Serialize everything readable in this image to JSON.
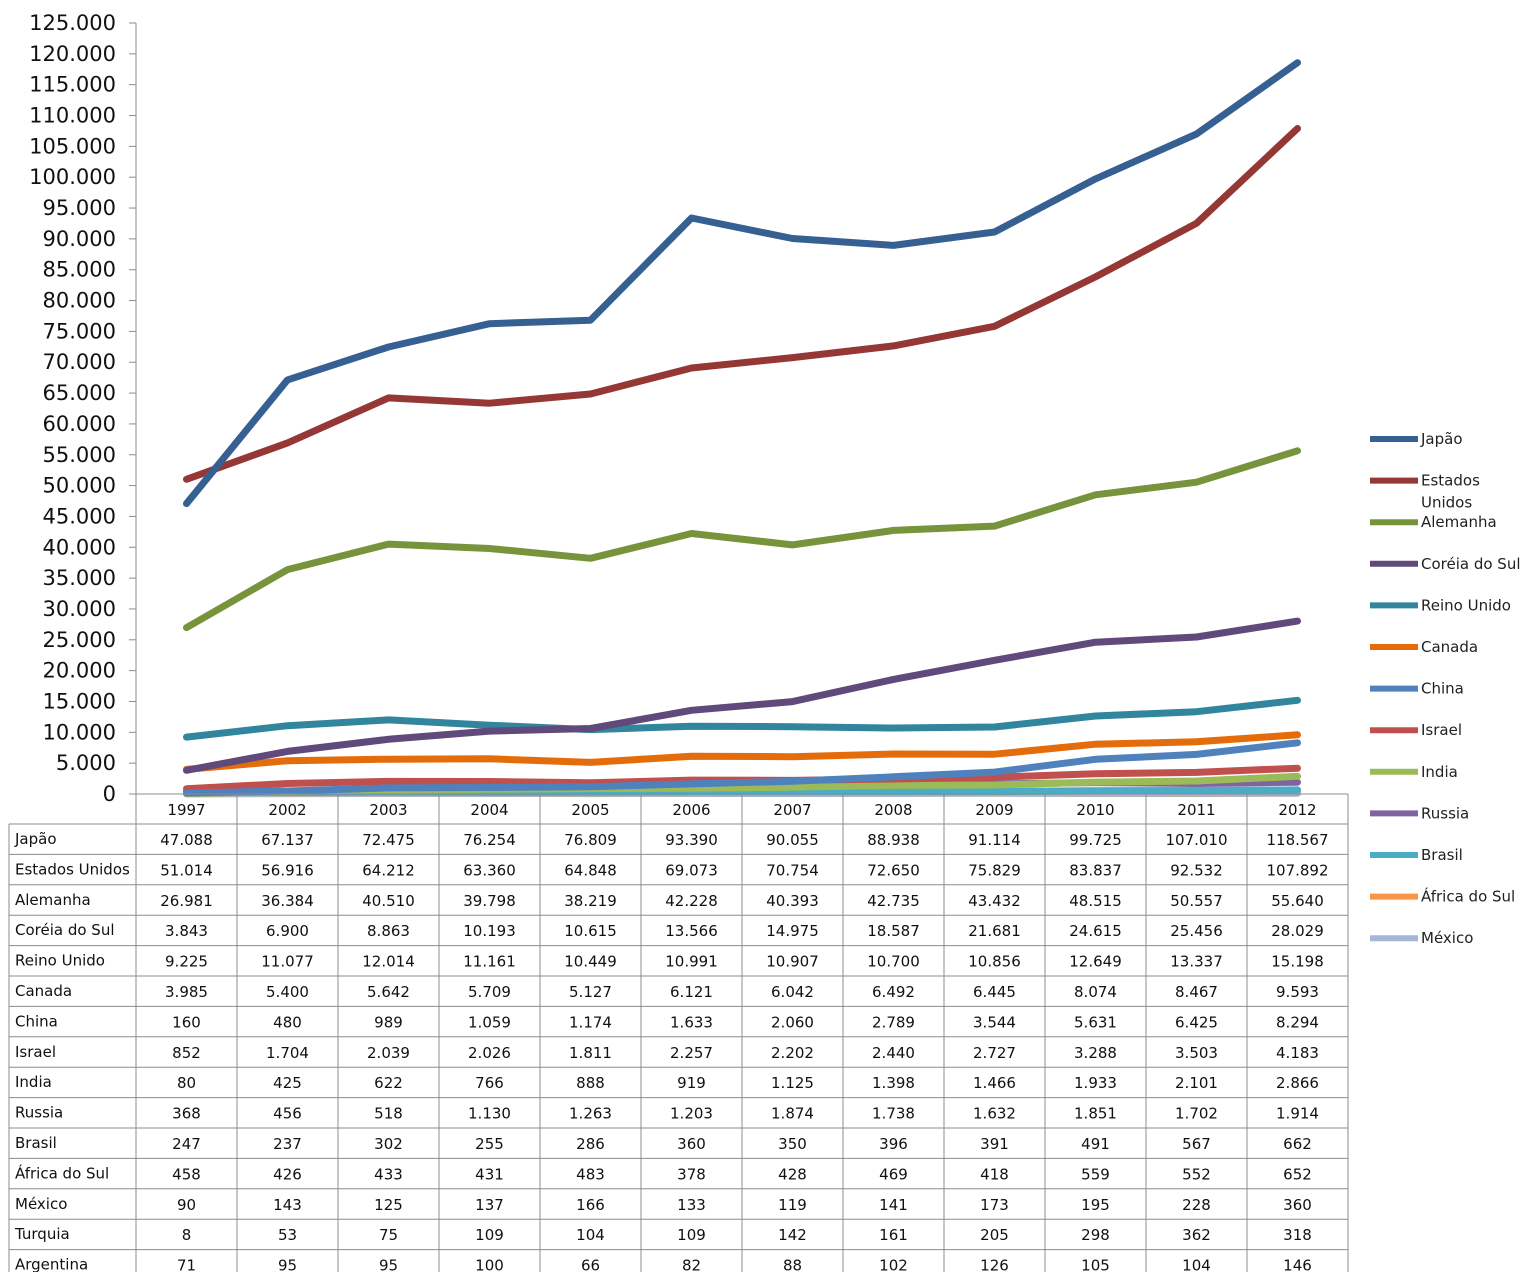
{
  "chart_data": {
    "type": "line",
    "title": "",
    "xlabel": "",
    "ylabel": "",
    "ylim": [
      0,
      125000
    ],
    "y_ticks": [
      "0",
      "5.000",
      "10.000",
      "15.000",
      "20.000",
      "25.000",
      "30.000",
      "35.000",
      "40.000",
      "45.000",
      "50.000",
      "55.000",
      "60.000",
      "65.000",
      "70.000",
      "75.000",
      "80.000",
      "85.000",
      "90.000",
      "95.000",
      "100.000",
      "105.000",
      "110.000",
      "115.000",
      "120.000",
      "125.000"
    ],
    "categories": [
      "1997",
      "2002",
      "2003",
      "2004",
      "2005",
      "2006",
      "2007",
      "2008",
      "2009",
      "2010",
      "2011",
      "2012"
    ],
    "legend_position": "right",
    "series": [
      {
        "name": "Japão",
        "color": "#376092",
        "plotted": true,
        "values": [
          47088,
          67137,
          72475,
          76254,
          76809,
          93390,
          90055,
          88938,
          91114,
          99725,
          107010,
          118567
        ],
        "labels": [
          "47.088",
          "67.137",
          "72.475",
          "76.254",
          "76.809",
          "93.390",
          "90.055",
          "88.938",
          "91.114",
          "99.725",
          "107.010",
          "118.567"
        ]
      },
      {
        "name": "Estados Unidos",
        "legend_lines": [
          "Estados",
          "Unidos"
        ],
        "color": "#953735",
        "plotted": true,
        "values": [
          51014,
          56916,
          64212,
          63360,
          64848,
          69073,
          70754,
          72650,
          75829,
          83837,
          92532,
          107892
        ],
        "labels": [
          "51.014",
          "56.916",
          "64.212",
          "63.360",
          "64.848",
          "69.073",
          "70.754",
          "72.650",
          "75.829",
          "83.837",
          "92.532",
          "107.892"
        ]
      },
      {
        "name": "Alemanha",
        "color": "#77933C",
        "plotted": true,
        "values": [
          26981,
          36384,
          40510,
          39798,
          38219,
          42228,
          40393,
          42735,
          43432,
          48515,
          50557,
          55640
        ],
        "labels": [
          "26.981",
          "36.384",
          "40.510",
          "39.798",
          "38.219",
          "42.228",
          "40.393",
          "42.735",
          "43.432",
          "48.515",
          "50.557",
          "55.640"
        ]
      },
      {
        "name": "Coréia do Sul",
        "color": "#604A7B",
        "plotted": true,
        "values": [
          3843,
          6900,
          8863,
          10193,
          10615,
          13566,
          14975,
          18587,
          21681,
          24615,
          25456,
          28029
        ],
        "labels": [
          "3.843",
          "6.900",
          "8.863",
          "10.193",
          "10.615",
          "13.566",
          "14.975",
          "18.587",
          "21.681",
          "24.615",
          "25.456",
          "28.029"
        ]
      },
      {
        "name": "Reino Unido",
        "color": "#31859C",
        "plotted": true,
        "values": [
          9225,
          11077,
          12014,
          11161,
          10449,
          10991,
          10907,
          10700,
          10856,
          12649,
          13337,
          15198
        ],
        "labels": [
          "9.225",
          "11.077",
          "12.014",
          "11.161",
          "10.449",
          "10.991",
          "10.907",
          "10.700",
          "10.856",
          "12.649",
          "13.337",
          "15.198"
        ]
      },
      {
        "name": "Canada",
        "color": "#E46C0A",
        "plotted": true,
        "values": [
          3985,
          5400,
          5642,
          5709,
          5127,
          6121,
          6042,
          6492,
          6445,
          8074,
          8467,
          9593
        ],
        "labels": [
          "3.985",
          "5.400",
          "5.642",
          "5.709",
          "5.127",
          "6.121",
          "6.042",
          "6.492",
          "6.445",
          "8.074",
          "8.467",
          "9.593"
        ]
      },
      {
        "name": "China",
        "color": "#4F81BD",
        "plotted": true,
        "values": [
          160,
          480,
          989,
          1059,
          1174,
          1633,
          2060,
          2789,
          3544,
          5631,
          6425,
          8294
        ],
        "labels": [
          "160",
          "480",
          "989",
          "1.059",
          "1.174",
          "1.633",
          "2.060",
          "2.789",
          "3.544",
          "5.631",
          "6.425",
          "8.294"
        ]
      },
      {
        "name": "Israel",
        "color": "#C0504D",
        "plotted": true,
        "values": [
          852,
          1704,
          2039,
          2026,
          1811,
          2257,
          2202,
          2440,
          2727,
          3288,
          3503,
          4183
        ],
        "labels": [
          "852",
          "1.704",
          "2.039",
          "2.026",
          "1.811",
          "2.257",
          "2.202",
          "2.440",
          "2.727",
          "3.288",
          "3.503",
          "4.183"
        ]
      },
      {
        "name": "India",
        "color": "#9BBB59",
        "plotted": true,
        "values": [
          80,
          425,
          622,
          766,
          888,
          919,
          1125,
          1398,
          1466,
          1933,
          2101,
          2866
        ],
        "labels": [
          "80",
          "425",
          "622",
          "766",
          "888",
          "919",
          "1.125",
          "1.398",
          "1.466",
          "1.933",
          "2.101",
          "2.866"
        ]
      },
      {
        "name": "Russia",
        "color": "#8064A2",
        "plotted": true,
        "values": [
          368,
          456,
          518,
          1130,
          1263,
          1203,
          1874,
          1738,
          1632,
          1851,
          1702,
          1914
        ],
        "labels": [
          "368",
          "456",
          "518",
          "1.130",
          "1.263",
          "1.203",
          "1.874",
          "1.738",
          "1.632",
          "1.851",
          "1.702",
          "1.914"
        ]
      },
      {
        "name": "Brasil",
        "color": "#4BACC6",
        "plotted": true,
        "values": [
          247,
          237,
          302,
          255,
          286,
          360,
          350,
          396,
          391,
          491,
          567,
          662
        ],
        "labels": [
          "247",
          "237",
          "302",
          "255",
          "286",
          "360",
          "350",
          "396",
          "391",
          "491",
          "567",
          "662"
        ]
      },
      {
        "name": "África do Sul",
        "color": "#F79646",
        "plotted": true,
        "values": [
          458,
          426,
          433,
          431,
          483,
          378,
          428,
          469,
          418,
          559,
          552,
          652
        ],
        "labels": [
          "458",
          "426",
          "433",
          "431",
          "483",
          "378",
          "428",
          "469",
          "418",
          "559",
          "552",
          "652"
        ]
      },
      {
        "name": "México",
        "color": "#A5B6D9",
        "plotted": true,
        "values": [
          90,
          143,
          125,
          137,
          166,
          133,
          119,
          141,
          173,
          195,
          228,
          360
        ],
        "labels": [
          "90",
          "143",
          "125",
          "137",
          "166",
          "133",
          "119",
          "141",
          "173",
          "195",
          "228",
          "360"
        ]
      },
      {
        "name": "Turquia",
        "color": "#CFC07A",
        "plotted": true,
        "values": [
          8,
          53,
          75,
          109,
          104,
          109,
          142,
          161,
          205,
          298,
          362,
          318
        ],
        "labels": [
          "8",
          "53",
          "75",
          "109",
          "104",
          "109",
          "142",
          "161",
          "205",
          "298",
          "362",
          "318"
        ]
      },
      {
        "name": "Argentina",
        "color": "#9E9E9E",
        "plotted": true,
        "values": [
          71,
          95,
          95,
          100,
          66,
          82,
          88,
          102,
          126,
          105,
          104,
          146
        ],
        "labels": [
          "71",
          "95",
          "95",
          "100",
          "66",
          "82",
          "88",
          "102",
          "126",
          "105",
          "104",
          "146"
        ]
      }
    ],
    "legend_entries": [
      "Japão",
      "Estados Unidos",
      "Alemanha",
      "Coréia do Sul",
      "Reino Unido",
      "Canada",
      "China",
      "Israel",
      "India",
      "Russia",
      "Brasil",
      "África do Sul",
      "México"
    ]
  }
}
